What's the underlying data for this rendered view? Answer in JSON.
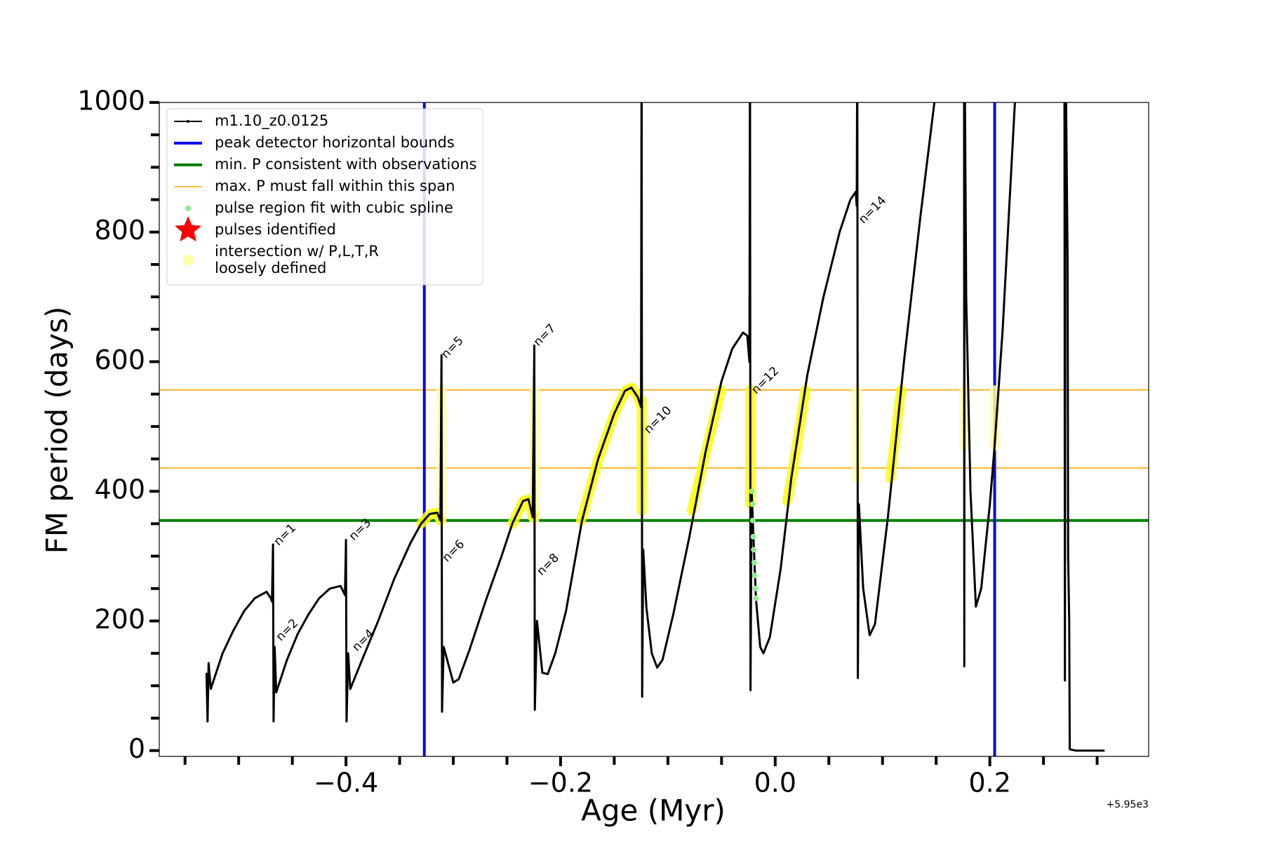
{
  "chart_data": {
    "type": "line",
    "xlabel": "Age (Myr)",
    "ylabel": "FM period (days)",
    "x_offset_label": "+5.95e3",
    "xlim": [
      -0.574,
      0.348
    ],
    "ylim": [
      -9,
      1000
    ],
    "xticks": [
      {
        "value": -0.4,
        "label": "−0.4"
      },
      {
        "value": -0.2,
        "label": "−0.2"
      },
      {
        "value": 0.0,
        "label": "0.0"
      },
      0.2
    ],
    "xminorticks": [
      -0.55,
      -0.5,
      -0.45,
      -0.35,
      -0.3,
      -0.25,
      -0.15,
      -0.1,
      -0.05,
      0.05,
      0.1,
      0.15,
      0.25,
      0.3
    ],
    "yticks": [
      0,
      200,
      400,
      600,
      800,
      1000
    ],
    "yminorticks": [
      50,
      100,
      150,
      250,
      300,
      350,
      450,
      500,
      550,
      650,
      700,
      750,
      850,
      900,
      950
    ],
    "legend_position": "upper left",
    "series": [
      {
        "name": "m1.10_z0.0125",
        "kind": "line",
        "color": "#000000",
        "x": [
          -0.53,
          -0.529,
          -0.528,
          -0.526,
          -0.515,
          -0.505,
          -0.495,
          -0.485,
          -0.474,
          -0.47,
          -0.469,
          -0.468,
          -0.4675,
          -0.4665,
          -0.465,
          -0.455,
          -0.445,
          -0.435,
          -0.425,
          -0.415,
          -0.405,
          -0.401,
          -0.4,
          -0.3995,
          -0.398,
          -0.396,
          -0.385,
          -0.37,
          -0.355,
          -0.34,
          -0.33,
          -0.322,
          -0.315,
          -0.312,
          -0.311,
          -0.3105,
          -0.309,
          -0.3,
          -0.295,
          -0.285,
          -0.27,
          -0.255,
          -0.245,
          -0.235,
          -0.23,
          -0.226,
          -0.2245,
          -0.224,
          -0.222,
          -0.217,
          -0.212,
          -0.205,
          -0.195,
          -0.18,
          -0.165,
          -0.15,
          -0.14,
          -0.134,
          -0.128,
          -0.125,
          -0.1245,
          -0.124,
          -0.123,
          -0.12,
          -0.115,
          -0.11,
          -0.105,
          -0.095,
          -0.08,
          -0.065,
          -0.05,
          -0.04,
          -0.03,
          -0.026,
          -0.024,
          -0.0235,
          -0.023,
          -0.022,
          -0.018,
          -0.014,
          -0.011,
          -0.005,
          0.005,
          0.015,
          0.03,
          0.045,
          0.06,
          0.07,
          0.075,
          0.076,
          0.0765,
          0.077,
          0.078,
          0.082,
          0.088,
          0.093,
          0.105,
          0.12,
          0.135,
          0.152,
          0.176,
          0.1762,
          0.1765,
          0.178,
          0.182,
          0.187,
          0.192,
          0.2,
          0.2045,
          0.212,
          0.225,
          0.2695,
          0.27,
          0.2705,
          0.2725,
          0.273,
          0.274,
          0.2745,
          0.28,
          0.307
        ],
        "y": [
          120,
          45,
          135,
          95,
          150,
          185,
          215,
          235,
          245,
          235,
          230,
          318,
          45,
          160,
          90,
          140,
          180,
          210,
          235,
          250,
          254,
          240,
          325,
          45,
          150,
          95,
          140,
          200,
          265,
          320,
          350,
          365,
          367,
          355,
          610,
          60,
          160,
          105,
          110,
          155,
          230,
          300,
          350,
          385,
          388,
          360,
          625,
          63,
          200,
          120,
          118,
          150,
          215,
          355,
          450,
          520,
          555,
          560,
          545,
          530,
          1100,
          83,
          310,
          220,
          150,
          128,
          140,
          210,
          330,
          460,
          570,
          620,
          645,
          640,
          600,
          1100,
          93,
          400,
          235,
          160,
          150,
          175,
          280,
          420,
          580,
          700,
          800,
          850,
          862,
          840,
          1100,
          112,
          380,
          250,
          178,
          195,
          360,
          600,
          820,
          1050,
          1100,
          130,
          1100,
          700,
          400,
          222,
          250,
          380,
          470,
          650,
          1050,
          1100,
          108,
          1100,
          760,
          300,
          200,
          2,
          0,
          0
        ]
      },
      {
        "name": "peak detector horizontal bounds",
        "kind": "vline",
        "color": "#0000ff",
        "values": [
          -0.327,
          0.2045
        ]
      },
      {
        "name": "min. P consistent with observations",
        "kind": "hline",
        "color": "#008000",
        "values": [
          355
        ]
      },
      {
        "name": "max. P must fall within this span",
        "kind": "hline",
        "color": "#ffa500",
        "values": [
          436,
          556.5
        ]
      },
      {
        "name": "pulse region fit with cubic spline",
        "kind": "scatter",
        "color": "#90ee90",
        "x": [
          -0.022,
          -0.0215,
          -0.021,
          -0.0205,
          -0.02,
          -0.0195,
          -0.019,
          -0.0185,
          -0.018
        ],
        "y": [
          400,
          380,
          355,
          330,
          310,
          290,
          270,
          250,
          235
        ]
      },
      {
        "name": "pulses identified",
        "kind": "star",
        "color": "#ff0000",
        "x": [],
        "y": []
      },
      {
        "name": "intersection w/ P,L,T,R\nloosely defined",
        "kind": "band",
        "color": "#ffffaa",
        "x": [
          -0.311,
          -0.311,
          null,
          -0.2245,
          -0.2245,
          null,
          0.0762,
          0.0762,
          null,
          0.176,
          0.176,
          null,
          0.2045,
          0.2045
        ],
        "y": [
          355,
          556,
          null,
          355,
          556,
          null,
          420,
          556,
          null,
          470,
          556,
          null,
          470,
          556
        ]
      },
      {
        "kind": "band",
        "color": "#ffff00",
        "x": [
          -0.33,
          -0.322,
          -0.315,
          -0.312,
          null,
          -0.245,
          -0.235,
          -0.23,
          -0.226,
          null,
          -0.181,
          -0.165,
          -0.15,
          -0.14,
          -0.134,
          -0.128,
          -0.125,
          -0.1245,
          -0.1245,
          null,
          -0.078,
          -0.065,
          -0.051,
          null,
          -0.0235,
          -0.0235,
          null,
          0.011,
          0.015,
          0.028,
          null,
          0.107,
          0.117
        ],
        "y": [
          350,
          365,
          367,
          355,
          null,
          350,
          385,
          388,
          360,
          null,
          355,
          450,
          520,
          555,
          560,
          545,
          530,
          540,
          370,
          null,
          370,
          460,
          556,
          null,
          380,
          556,
          null,
          385,
          420,
          556,
          null,
          420,
          556
        ]
      }
    ],
    "annotations": [
      {
        "text": "n=1",
        "x": -0.465,
        "y": 319
      },
      {
        "text": "n=2",
        "x": -0.463,
        "y": 172
      },
      {
        "text": "n=3",
        "x": -0.395,
        "y": 327
      },
      {
        "text": "n=4",
        "x": -0.392,
        "y": 156
      },
      {
        "text": "n=5",
        "x": -0.309,
        "y": 608
      },
      {
        "text": "n=6",
        "x": -0.308,
        "y": 294
      },
      {
        "text": "n=7",
        "x": -0.223,
        "y": 627
      },
      {
        "text": "n=8",
        "x": -0.22,
        "y": 273
      },
      {
        "text": "n=10",
        "x": -0.12,
        "y": 492
      },
      {
        "text": "n=12",
        "x": -0.02,
        "y": 553
      },
      {
        "text": "n=14",
        "x": 0.08,
        "y": 816
      }
    ]
  }
}
